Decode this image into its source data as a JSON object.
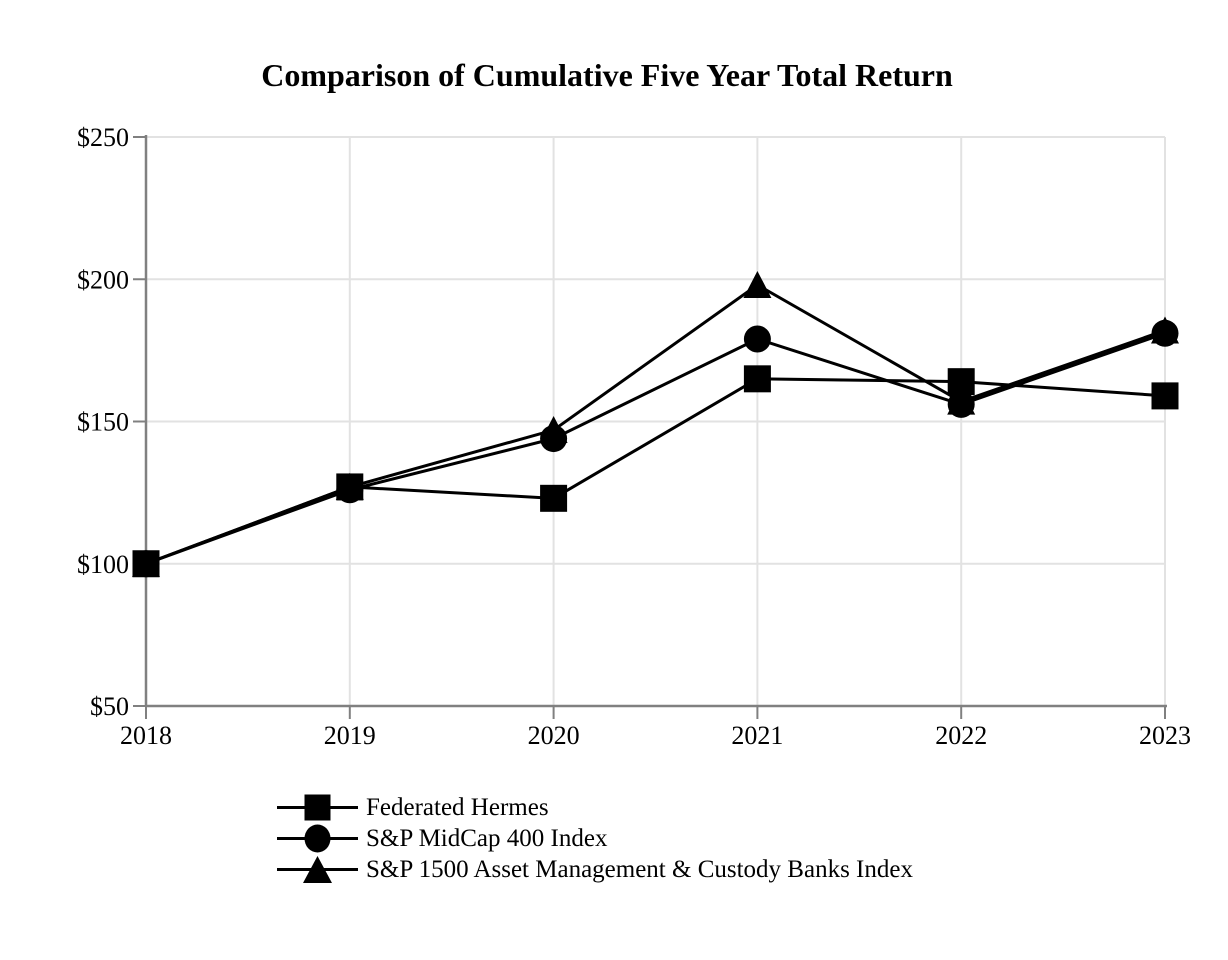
{
  "chart_data": {
    "type": "line",
    "title": "Comparison of Cumulative Five Year Total Return",
    "categories": [
      "2018",
      "2019",
      "2020",
      "2021",
      "2022",
      "2023"
    ],
    "series": [
      {
        "name": "Federated Hermes",
        "marker": "square",
        "color": "#000000",
        "values": [
          100,
          127,
          123,
          165,
          164,
          159
        ]
      },
      {
        "name": "S&P MidCap 400 Index",
        "marker": "circle",
        "color": "#000000",
        "values": [
          100,
          126,
          144,
          179,
          156,
          181
        ]
      },
      {
        "name": "S&P 1500 Asset Management & Custody Banks Index",
        "marker": "triangle",
        "color": "#000000",
        "values": [
          100,
          127,
          147,
          198,
          157,
          182
        ]
      }
    ],
    "ylim": [
      50,
      250
    ],
    "y_ticks": [
      {
        "value": 50,
        "label": "$50"
      },
      {
        "value": 100,
        "label": "$100"
      },
      {
        "value": 150,
        "label": "$150"
      },
      {
        "value": 200,
        "label": "$200"
      },
      {
        "value": 250,
        "label": "$250"
      }
    ],
    "grid": true,
    "legend_position": "bottom-left",
    "colors": {
      "axis": "#808080",
      "gridline": "#e2e2e2",
      "series": "#000000"
    }
  }
}
